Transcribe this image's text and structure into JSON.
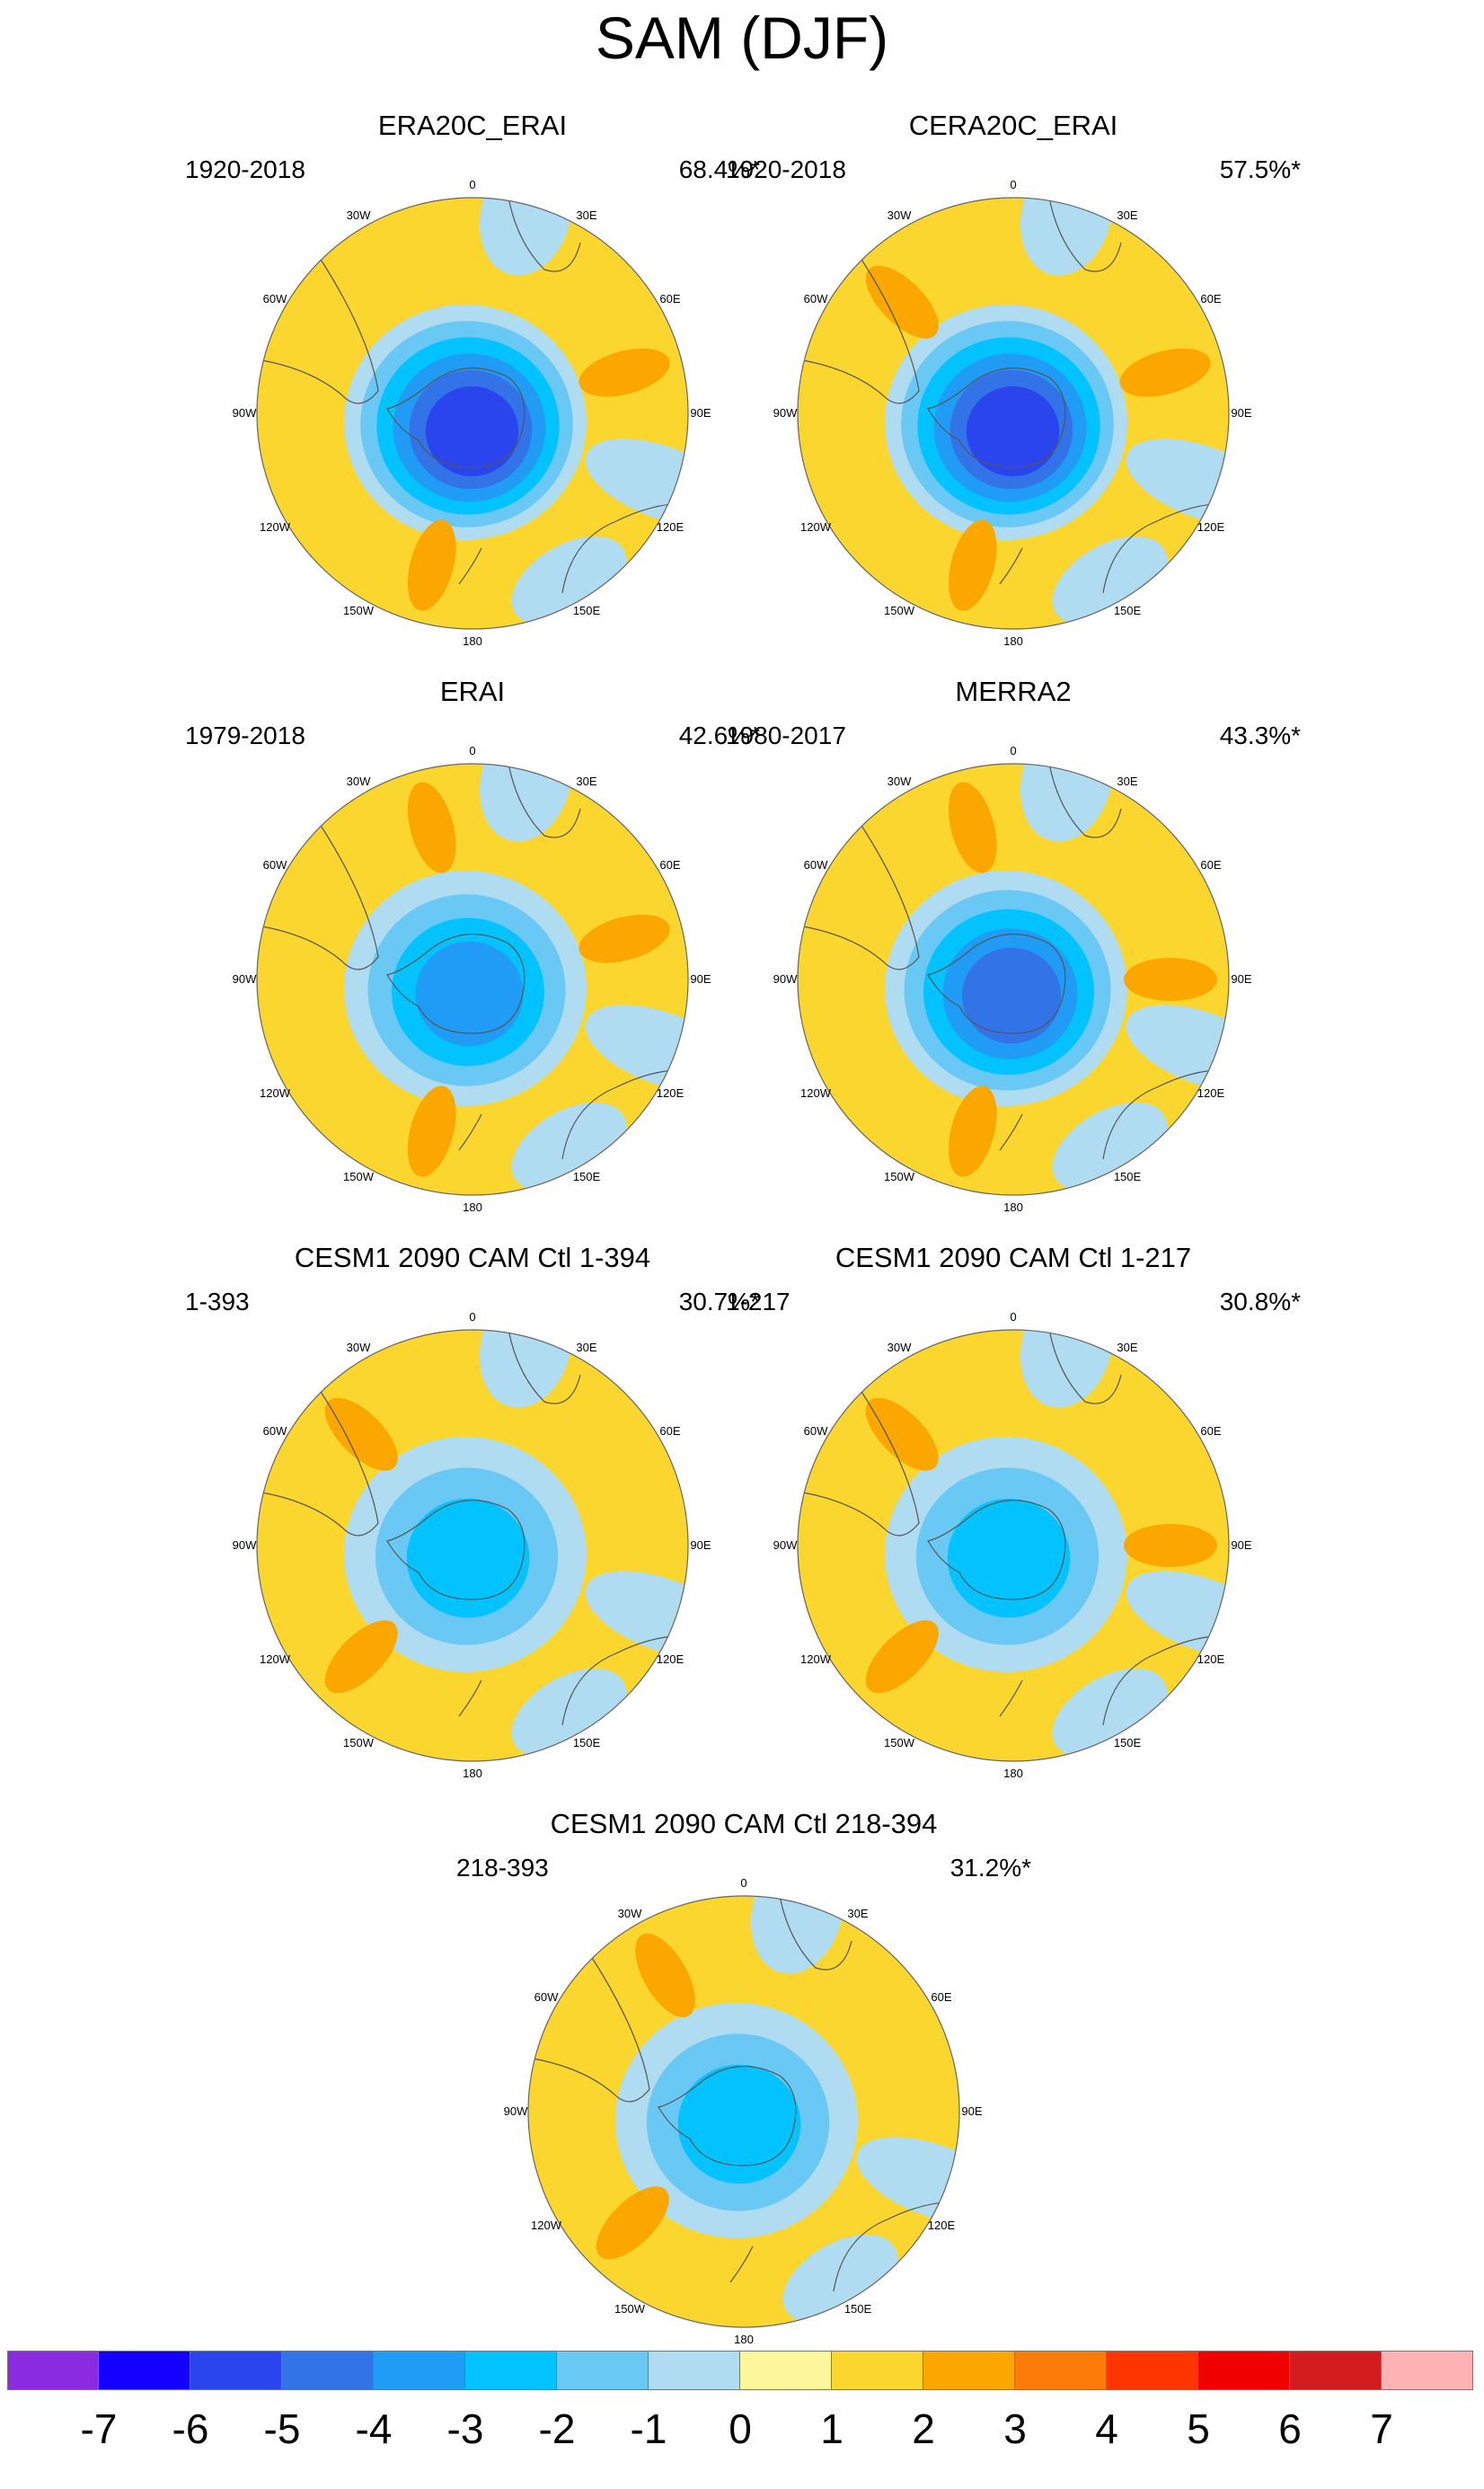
{
  "title": "SAM (DJF)",
  "panels": [
    {
      "title": "ERA20C_ERAI",
      "period": "1920-2018",
      "variance": "68.4%*",
      "levels": [
        -6,
        -5,
        -4,
        -3,
        -2,
        -1
      ],
      "positive_lobes": [
        {
          "sector": "60E-90E",
          "value": 2
        },
        {
          "sector": "150W-180",
          "value": 2
        }
      ]
    },
    {
      "title": "CERA20C_ERAI",
      "period": "1920-2018",
      "variance": "57.5%*",
      "levels": [
        -6,
        -5,
        -4,
        -3,
        -2,
        -1
      ],
      "positive_lobes": [
        {
          "sector": "60W-30W",
          "value": 2
        },
        {
          "sector": "60E-90E",
          "value": 2
        },
        {
          "sector": "150W-180",
          "value": 2
        }
      ]
    },
    {
      "title": "ERAI",
      "period": "1979-2018",
      "variance": "42.6%*",
      "levels": [
        -4,
        -3,
        -2,
        -1
      ],
      "positive_lobes": [
        {
          "sector": "30W-0",
          "value": 2
        },
        {
          "sector": "60E-90E",
          "value": 2
        },
        {
          "sector": "150W-180",
          "value": 2
        }
      ]
    },
    {
      "title": "MERRA2",
      "period": "1980-2017",
      "variance": "43.3%*",
      "levels": [
        -5,
        -4,
        -3,
        -2,
        -1
      ],
      "positive_lobes": [
        {
          "sector": "30W-0",
          "value": 2
        },
        {
          "sector": "60E-120E",
          "value": 2
        },
        {
          "sector": "150W-180",
          "value": 2
        }
      ]
    },
    {
      "title": "CESM1 2090 CAM Ctl 1-394",
      "period": "1-393",
      "variance": "30.7%*",
      "levels": [
        -3,
        -2,
        -1
      ],
      "positive_lobes": [
        {
          "sector": "60W-30W",
          "value": 2
        },
        {
          "sector": "120W-150W",
          "value": 2
        }
      ]
    },
    {
      "title": "CESM1 2090 CAM Ctl 1-217",
      "period": "1-217",
      "variance": "30.8%*",
      "levels": [
        -3,
        -2,
        -1
      ],
      "positive_lobes": [
        {
          "sector": "60W-30W",
          "value": 2
        },
        {
          "sector": "90E",
          "value": 2
        },
        {
          "sector": "120W-150W",
          "value": 2
        }
      ]
    },
    {
      "title": "CESM1 2090 CAM Ctl 218-394",
      "period": "218-393",
      "variance": "31.2%*",
      "levels": [
        -3,
        -2,
        -1
      ],
      "positive_lobes": [
        {
          "sector": "30W",
          "value": 2
        },
        {
          "sector": "120W-150W",
          "value": 2
        }
      ]
    }
  ],
  "longitude_labels": [
    "0",
    "30E",
    "60E",
    "90E",
    "120E",
    "150E",
    "180",
    "150W",
    "120W",
    "90W",
    "60W",
    "30W"
  ],
  "colorbar": {
    "labels": [
      "-7",
      "-6",
      "-5",
      "-4",
      "-3",
      "-2",
      "-1",
      "0",
      "1",
      "2",
      "3",
      "4",
      "5",
      "6",
      "7"
    ],
    "colors": [
      "#8a2be2",
      "#1400ff",
      "#2a45ee",
      "#3273e8",
      "#209cf7",
      "#02c2ff",
      "#6ac8f4",
      "#b0dcf2",
      "#fcf79a",
      "#fbd62e",
      "#fca700",
      "#fa7b08",
      "#fe3500",
      "#f10000",
      "#d21b1d",
      "#fdb3b4"
    ]
  },
  "colors": {
    "ocean_blue": "#b0dcf2",
    "land_outline": "#555555"
  }
}
